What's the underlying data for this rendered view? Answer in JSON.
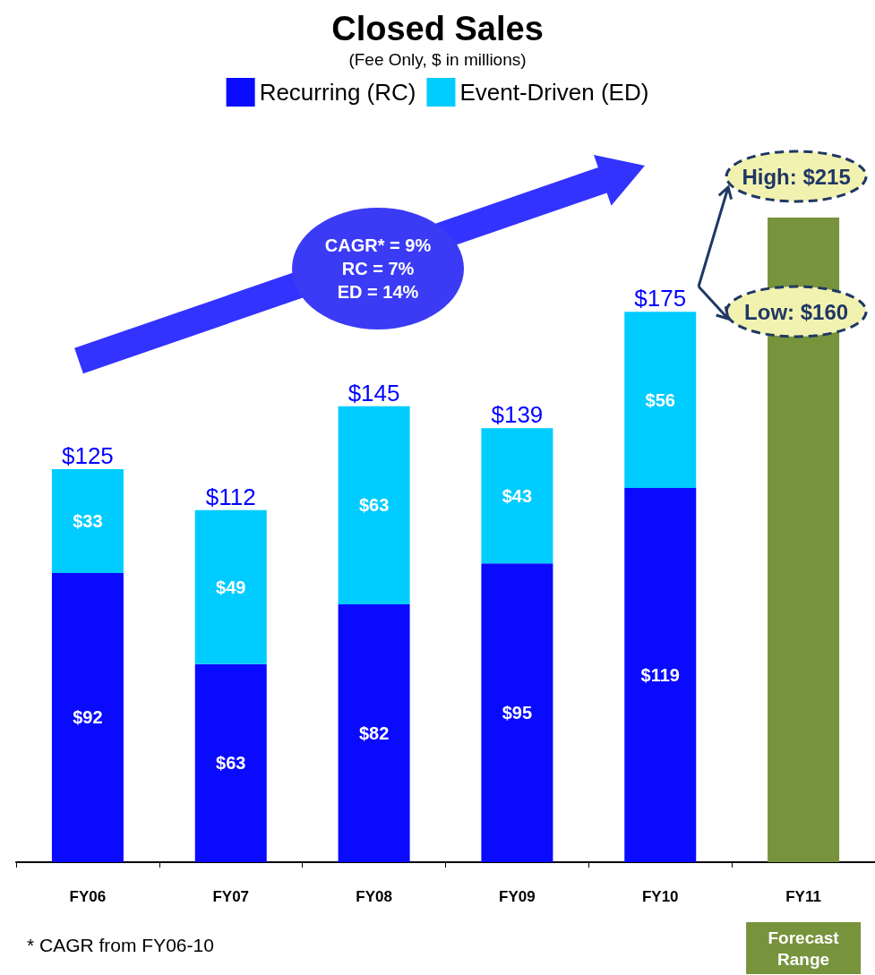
{
  "chart_data": {
    "type": "bar",
    "title": "Closed Sales",
    "subtitle": "(Fee Only, $ in millions)",
    "stacked": true,
    "legend": "top",
    "categories": [
      "FY06",
      "FY07",
      "FY08",
      "FY09",
      "FY10",
      "FY11"
    ],
    "series": [
      {
        "name": "Recurring (RC)",
        "color": "#0a0aff",
        "values": [
          92,
          63,
          82,
          95,
          119,
          null
        ],
        "value_labels": [
          "$92",
          "$63",
          "$82",
          "$95",
          "$119",
          null
        ]
      },
      {
        "name": "Event-Driven (ED)",
        "color": "#00ccff",
        "values": [
          33,
          49,
          63,
          43,
          56,
          null
        ],
        "value_labels": [
          "$33",
          "$49",
          "$63",
          "$43",
          "$56",
          null
        ]
      },
      {
        "name": "Forecast Range",
        "color": "#77933c",
        "values": [
          null,
          null,
          null,
          null,
          null,
          205
        ]
      }
    ],
    "totals": [
      "$125",
      "$112",
      "$145",
      "$139",
      "$175",
      null
    ],
    "annotations": [
      "CAGR* = 9%\nRC = 7%\nED = 14%",
      "High: $215",
      "Low: $160",
      "* CAGR from FY06-10"
    ]
  }
}
